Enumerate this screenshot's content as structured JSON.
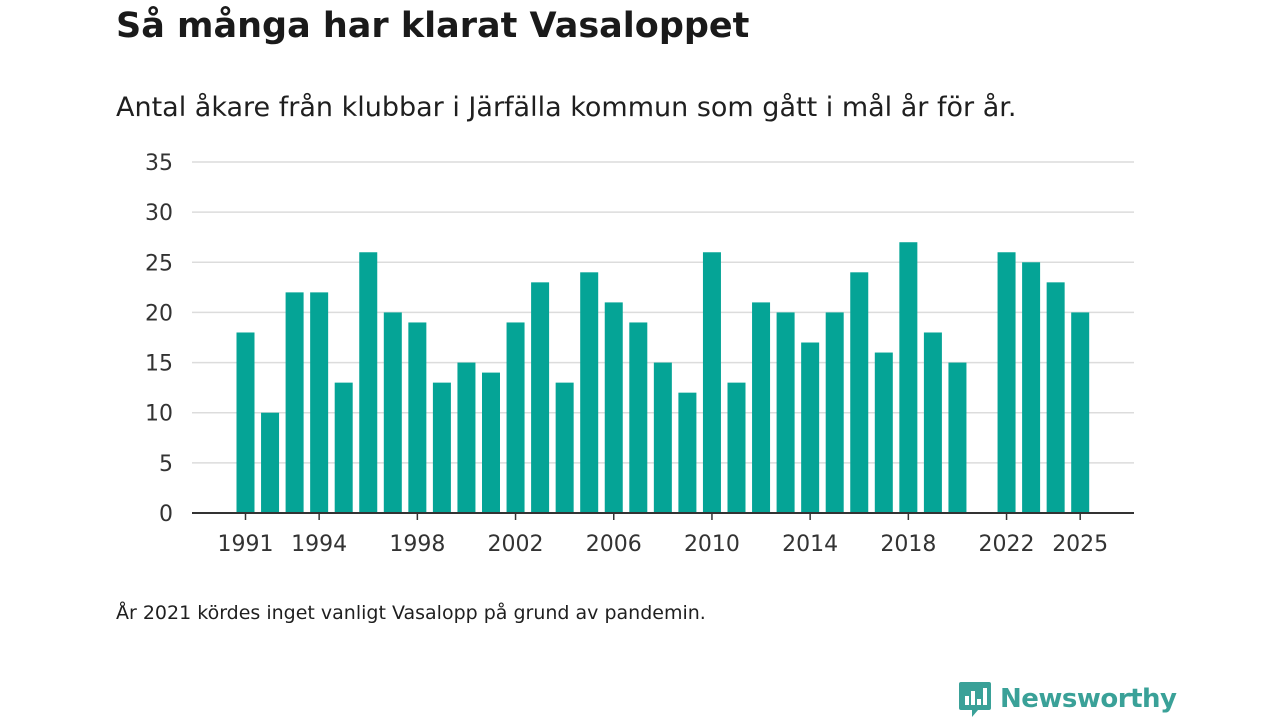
{
  "chart_data": {
    "type": "bar",
    "title": "Så många har klarat Vasaloppet",
    "subtitle": "Antal åkare från klubbar i Järfälla kommun som gått i mål år för år.",
    "categories": [
      1991,
      1992,
      1993,
      1994,
      1995,
      1996,
      1997,
      1998,
      1999,
      2000,
      2001,
      2002,
      2003,
      2004,
      2005,
      2006,
      2007,
      2008,
      2009,
      2010,
      2011,
      2012,
      2013,
      2014,
      2015,
      2016,
      2017,
      2018,
      2019,
      2020,
      2021,
      2022,
      2023,
      2024,
      2025
    ],
    "values": [
      18,
      10,
      22,
      22,
      13,
      26,
      20,
      19,
      13,
      15,
      14,
      19,
      23,
      13,
      24,
      21,
      19,
      15,
      12,
      26,
      13,
      21,
      20,
      17,
      20,
      24,
      16,
      27,
      18,
      15,
      null,
      26,
      25,
      23,
      20
    ],
    "x_tick_labels": [
      "1991",
      "1994",
      "1998",
      "2002",
      "2006",
      "2010",
      "2014",
      "2018",
      "2022",
      "2025"
    ],
    "y_ticks": [
      "0",
      "5",
      "10",
      "15",
      "20",
      "25",
      "30",
      "35"
    ],
    "ylim": [
      0,
      35
    ],
    "xlabel": "",
    "ylabel": "",
    "grid": true,
    "bar_color": "#05a496",
    "note": "År 2021 kördes inget vanligt Vasalopp på grund av pandemin."
  },
  "logo": {
    "text": "Newsworthy",
    "icon": "newsworthy-logo-icon",
    "color": "#3aa198"
  }
}
